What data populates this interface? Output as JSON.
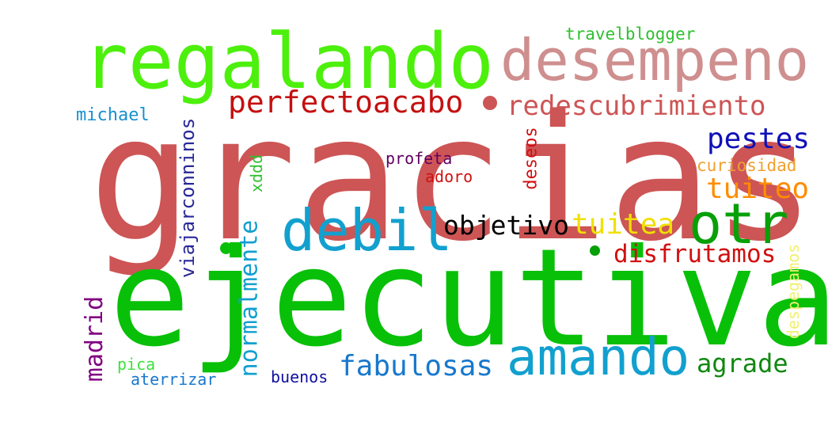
{
  "words": [
    {
      "text": "gracias",
      "color": "#cd5555"
    },
    {
      "text": "ejecutiva",
      "color": "#08c008"
    },
    {
      "text": "regalando",
      "color": "#4cf00c"
    },
    {
      "text": "desempeno",
      "color": "#cf8f8f"
    },
    {
      "text": "amando",
      "color": "#12a0cf"
    },
    {
      "text": "debil",
      "color": "#12a0cf"
    },
    {
      "text": "otr",
      "color": "#08a008"
    },
    {
      "text": "perfectoacabo",
      "color": "#c41010"
    },
    {
      "text": "redescubrimiento",
      "color": "#cd5555"
    },
    {
      "text": "fabulosas",
      "color": "#1878cc"
    },
    {
      "text": "objetivo",
      "color": "#000000"
    },
    {
      "text": "tuitea",
      "color": "#f0e000"
    },
    {
      "text": "pestes",
      "color": "#1010b8"
    },
    {
      "text": "disfrutamos",
      "color": "#d01010"
    },
    {
      "text": "tuiteo",
      "color": "#ff8c00"
    },
    {
      "text": "agrade",
      "color": "#108810"
    },
    {
      "text": "normalmente",
      "color": "#12a0cf"
    },
    {
      "text": "madrid",
      "color": "#800080"
    },
    {
      "text": "viajarconninos",
      "color": "#282898"
    },
    {
      "text": "travelblogger",
      "color": "#30c030"
    },
    {
      "text": "michael",
      "color": "#1890d0"
    },
    {
      "text": "curiosidad",
      "color": "#f0a030"
    },
    {
      "text": "profeta",
      "color": "#600060"
    },
    {
      "text": "adoro",
      "color": "#d01010"
    },
    {
      "text": "deseos",
      "color": "#d01010"
    },
    {
      "text": "xddd",
      "color": "#30c030"
    },
    {
      "text": "despegamos",
      "color": "#f0f070"
    },
    {
      "text": "buenos",
      "color": "#1010a0"
    },
    {
      "text": "aterrizar",
      "color": "#1878cc"
    },
    {
      "text": "pica",
      "color": "#40e040"
    }
  ]
}
